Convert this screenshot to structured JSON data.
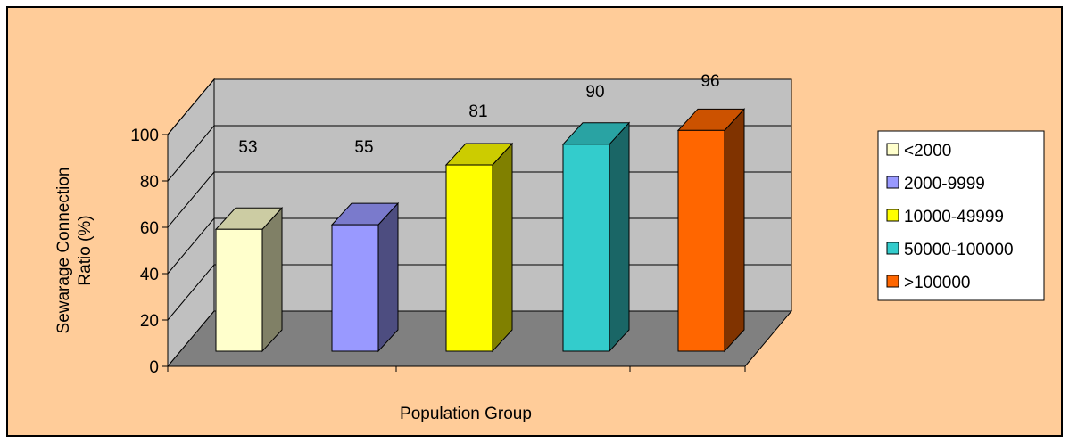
{
  "chart_data": {
    "type": "bar",
    "style": "3d-column",
    "categories": [
      "<2000",
      "2000-9999",
      "10000-49999",
      "50000-100000",
      ">100000"
    ],
    "values": [
      53,
      55,
      81,
      90,
      96
    ],
    "xlabel": "Population Group",
    "ylabel": "Sewarage Connection Ratio (%)",
    "ylabel_lines": [
      "Sewarage Connection",
      "Ratio (%)"
    ],
    "ylim": [
      0,
      100
    ],
    "yticks": [
      0,
      20,
      40,
      60,
      80,
      100
    ],
    "grid": true,
    "legend_position": "right",
    "data_labels": true,
    "colors": {
      "background": "#FFCC99",
      "wall": "#C0C0C0",
      "floor": "#808080",
      "bars": [
        {
          "front": "#FFFFCC",
          "side": "#808066",
          "top": "#CCCCA3"
        },
        {
          "front": "#9999FF",
          "side": "#4D4D80",
          "top": "#7A7ACC"
        },
        {
          "front": "#FFFF00",
          "side": "#808000",
          "top": "#CCCC00"
        },
        {
          "front": "#33CCCC",
          "side": "#1A6666",
          "top": "#29A3A3"
        },
        {
          "front": "#FF6600",
          "side": "#803300",
          "top": "#CC5200"
        }
      ]
    }
  }
}
